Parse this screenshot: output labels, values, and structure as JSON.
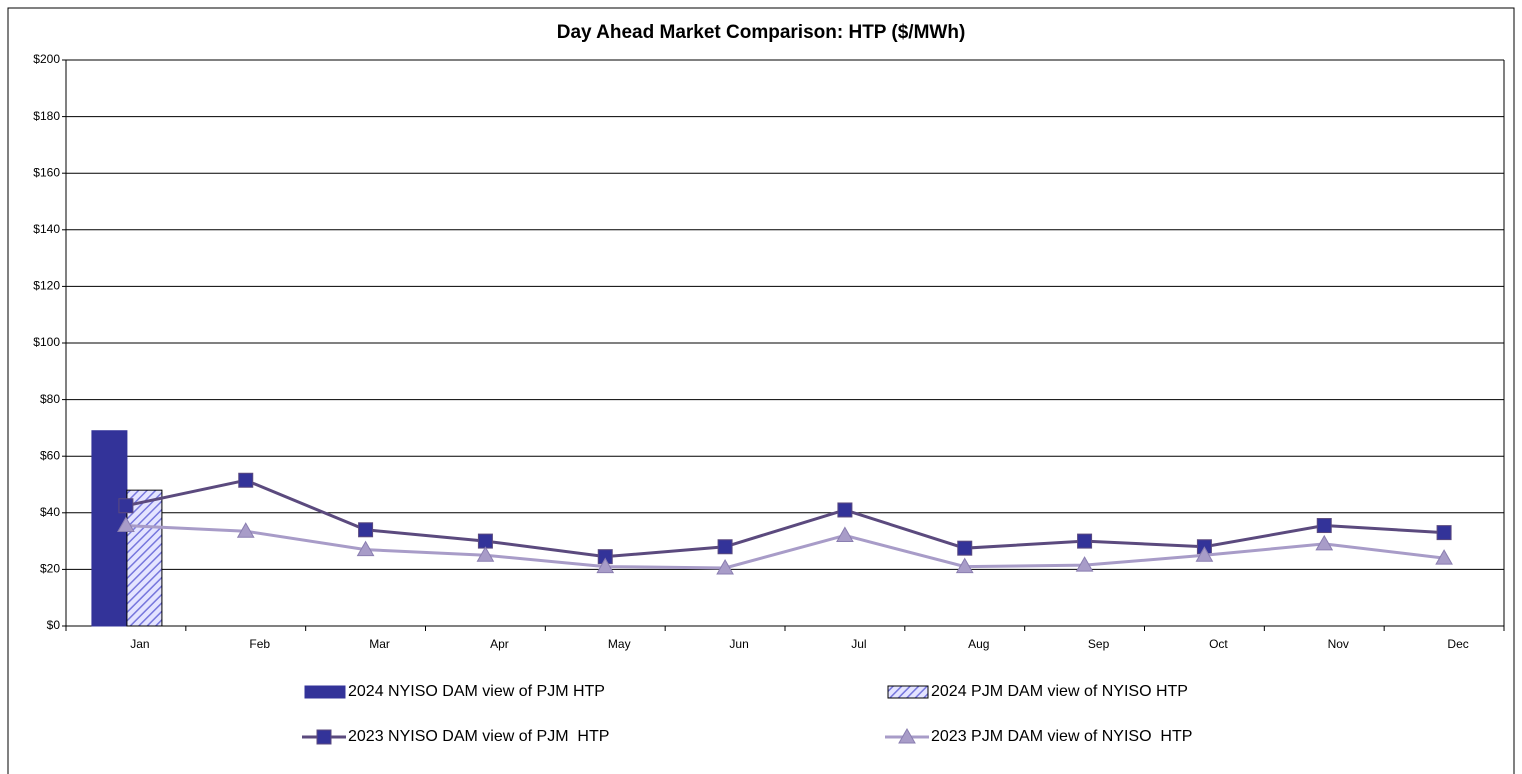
{
  "chart_data": {
    "type": "combo",
    "title": "Day Ahead Market Comparison: HTP ($/MWh)",
    "categories": [
      "Jan",
      "Feb",
      "Mar",
      "Apr",
      "May",
      "Jun",
      "Jul",
      "Aug",
      "Sep",
      "Oct",
      "Nov",
      "Dec"
    ],
    "series": [
      {
        "name": "2024 NYISO DAM view of PJM HTP",
        "kind": "bar",
        "color": "#333399",
        "values": [
          69,
          null,
          null,
          null,
          null,
          null,
          null,
          null,
          null,
          null,
          null,
          null
        ]
      },
      {
        "name": "2024 PJM DAM view of NYISO HTP",
        "kind": "bar",
        "color": "#7777dd",
        "hatch": true,
        "values": [
          48,
          null,
          null,
          null,
          null,
          null,
          null,
          null,
          null,
          null,
          null,
          null
        ]
      },
      {
        "name": "2023 NYISO DAM view of PJM  HTP",
        "kind": "line",
        "marker": "square",
        "color": "#5b4a7e",
        "marker_color": "#333399",
        "values": [
          42.5,
          51.5,
          34,
          30,
          24.5,
          28,
          41,
          27.5,
          30,
          28,
          35.5,
          33
        ]
      },
      {
        "name": "2023 PJM DAM view of NYISO  HTP",
        "kind": "line",
        "marker": "triangle",
        "color": "#a89cc8",
        "marker_color": "#a89cc8",
        "values": [
          35.5,
          33.5,
          27,
          25,
          21,
          20.5,
          32,
          21,
          21.5,
          25,
          29,
          24
        ]
      }
    ],
    "ylim": [
      0,
      200
    ],
    "yticks": [
      {
        "value": 0,
        "label": "$0"
      },
      {
        "value": 20,
        "label": "$20"
      },
      {
        "value": 40,
        "label": "$40"
      },
      {
        "value": 60,
        "label": "$60"
      },
      {
        "value": 80,
        "label": "$80"
      },
      {
        "value": 100,
        "label": "$100"
      },
      {
        "value": 120,
        "label": "$120"
      },
      {
        "value": 140,
        "label": "$140"
      },
      {
        "value": 160,
        "label": "$160"
      },
      {
        "value": 180,
        "label": "$180"
      },
      {
        "value": 200,
        "label": "$200"
      }
    ],
    "grid": true,
    "legend": "bottom"
  }
}
